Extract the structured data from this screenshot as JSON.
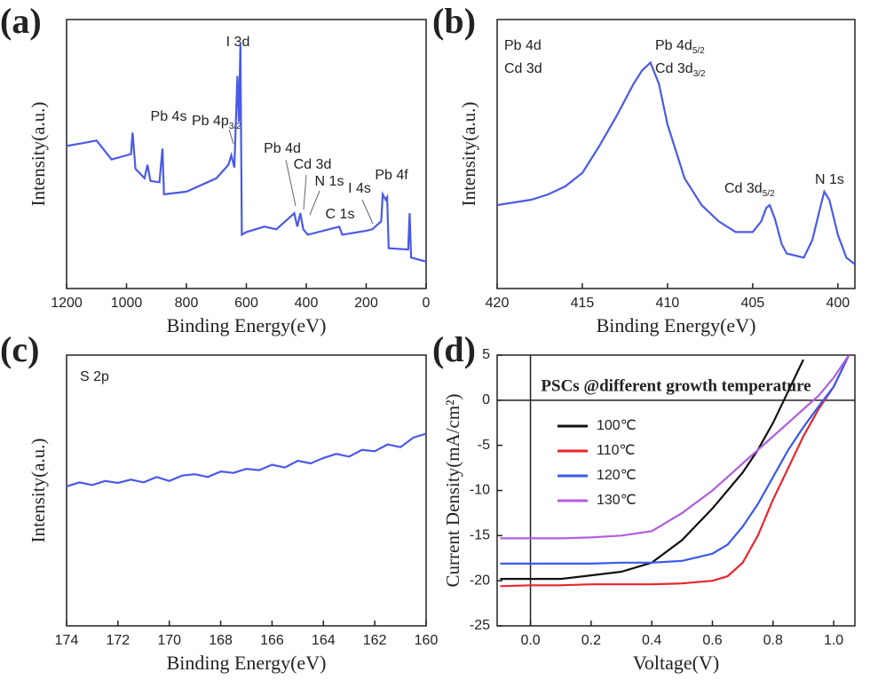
{
  "chart_data": [
    {
      "type": "line",
      "panel_label": "(a)",
      "xlabel": "Binding Energy(eV)",
      "ylabel": "Intensity(a.u.)",
      "xlim": [
        1200,
        0
      ],
      "xticks": [
        1200,
        1000,
        800,
        600,
        400,
        200,
        0
      ],
      "ylim": [
        0,
        100
      ],
      "x": [
        1200,
        1150,
        1100,
        1050,
        1000,
        985,
        980,
        970,
        940,
        930,
        920,
        890,
        880,
        875,
        800,
        700,
        660,
        650,
        640,
        630,
        625,
        620,
        615,
        600,
        540,
        500,
        440,
        430,
        420,
        410,
        395,
        290,
        280,
        200,
        180,
        150,
        145,
        135,
        130,
        125,
        60,
        55,
        50,
        0
      ],
      "series": [
        {
          "color": "#4a5ae8",
          "values": [
            53,
            54,
            55,
            48,
            49.5,
            50,
            58,
            44.5,
            41,
            46,
            40,
            39.5,
            52,
            35,
            36,
            41,
            46,
            49.5,
            45,
            79,
            62,
            91,
            20,
            21,
            23,
            22,
            28,
            23,
            28,
            22,
            20,
            23,
            20,
            21.5,
            22,
            25,
            35,
            33,
            34,
            15,
            14.5,
            28,
            11.5,
            10
          ]
        }
      ],
      "annotations": [
        {
          "text": "I 3d"
        },
        {
          "text": "Pb 4s"
        },
        {
          "text": "Pb 4p",
          "sub": "3/2"
        },
        {
          "text": "Pb 4d"
        },
        {
          "text": "Cd 3d"
        },
        {
          "text": "N 1s"
        },
        {
          "text": "C 1s"
        },
        {
          "text": "I 4s"
        },
        {
          "text": "Pb 4f"
        }
      ]
    },
    {
      "type": "line",
      "panel_label": "(b)",
      "xlabel": "Binding Energy(eV)",
      "ylabel": "Intensity(a.u.)",
      "xlim": [
        420,
        399
      ],
      "xticks": [
        420,
        415,
        410,
        405,
        400
      ],
      "ylim": [
        0,
        100
      ],
      "x": [
        420,
        419,
        418,
        417,
        416,
        415,
        414,
        413,
        412,
        411.5,
        411,
        410.5,
        410,
        409,
        408,
        407,
        406,
        405,
        404.5,
        404.2,
        404,
        403.7,
        403.3,
        403,
        402,
        401.5,
        401,
        400.8,
        400.5,
        400,
        399.5,
        399
      ],
      "series": [
        {
          "color": "#4a5ae8",
          "values": [
            31,
            32,
            33,
            35,
            38,
            43,
            53,
            64,
            76,
            81,
            84,
            76,
            61,
            41,
            31,
            25,
            21,
            21,
            25,
            30,
            31,
            26,
            16.5,
            13,
            11.5,
            18,
            31,
            36,
            33,
            20,
            11.5,
            9
          ]
        }
      ],
      "annotations": [
        {
          "text": "Pb 4d"
        },
        {
          "text": "Cd 3d"
        },
        {
          "text": "Pb 4d",
          "sub": "5/2"
        },
        {
          "text": "Cd 3d",
          "sub": "3/2"
        },
        {
          "text": "Cd 3d",
          "sub": "5/2"
        },
        {
          "text": "N 1s"
        }
      ]
    },
    {
      "type": "line",
      "panel_label": "(c)",
      "xlabel": "Binding Energy(eV)",
      "ylabel": "Intensity(a.u.)",
      "xlim": [
        174,
        160
      ],
      "xticks": [
        174,
        172,
        170,
        168,
        166,
        164,
        162,
        160
      ],
      "ylim": [
        0,
        100
      ],
      "x": [
        174,
        173.5,
        173,
        172.5,
        172,
        171.5,
        171,
        170.5,
        170,
        169.5,
        169,
        168.5,
        168,
        167.5,
        167,
        166.5,
        166,
        165.5,
        165,
        164.5,
        164,
        163.5,
        163,
        162.5,
        162,
        161.5,
        161,
        160.5,
        160
      ],
      "series": [
        {
          "color": "#4a5ae8",
          "values": [
            51.5,
            53,
            52,
            53.5,
            52.8,
            54,
            53,
            55,
            53.5,
            55.5,
            56,
            55,
            57,
            56.5,
            58,
            57.5,
            59.5,
            58.5,
            61,
            60,
            62,
            63.5,
            62.5,
            65,
            64.5,
            67,
            66,
            69.5,
            71
          ]
        }
      ],
      "annotations": [
        {
          "text": "S 2p"
        }
      ]
    },
    {
      "type": "line",
      "panel_label": "(d)",
      "xlabel": "Voltage(V)",
      "ylabel": "Current Density(mA/cm²)",
      "title": "PSCs @different growth temperature",
      "xlim": [
        -0.11,
        1.07
      ],
      "ylim": [
        -25,
        5
      ],
      "xticks": [
        {
          "value": 0,
          "label": "0.0"
        },
        {
          "value": 0.2,
          "label": "0.2"
        },
        {
          "value": 0.4,
          "label": "0.4"
        },
        {
          "value": 0.6,
          "label": "0.6"
        },
        {
          "value": 0.8,
          "label": "0.8"
        },
        {
          "value": 1,
          "label": "1.0"
        }
      ],
      "yticks": [
        5,
        0,
        -5,
        -10,
        -15,
        -20,
        -25
      ],
      "x": [
        -0.1,
        0,
        0.1,
        0.2,
        0.3,
        0.4,
        0.5,
        0.6,
        0.65,
        0.7,
        0.75,
        0.8,
        0.85,
        0.9,
        0.95,
        1.0,
        1.05
      ],
      "series": [
        {
          "name": "100℃",
          "color": "#111111",
          "values": [
            -19.8,
            -19.8,
            -19.8,
            -19.4,
            -19,
            -18,
            -15.5,
            -12,
            -10,
            -8,
            -5.5,
            -2.5,
            1,
            4.5,
            null,
            null,
            null
          ]
        },
        {
          "name": "110℃",
          "color": "#e8262b",
          "values": [
            -20.6,
            -20.5,
            -20.5,
            -20.4,
            -20.4,
            -20.4,
            -20.3,
            -20,
            -19.5,
            -18,
            -15,
            -11,
            -7.5,
            -4,
            -1,
            1.5,
            5
          ]
        },
        {
          "name": "120℃",
          "color": "#3a5ae8",
          "values": [
            -18.1,
            -18.1,
            -18.1,
            -18.1,
            -18,
            -18,
            -17.8,
            -17,
            -16,
            -14,
            -11.5,
            -8.5,
            -5.5,
            -3,
            -0.7,
            1.5,
            5
          ]
        },
        {
          "name": "130℃",
          "color": "#b05ee0",
          "values": [
            -15.3,
            -15.3,
            -15.3,
            -15.2,
            -15,
            -14.5,
            -12.5,
            -10,
            -8.5,
            -7,
            -5.5,
            -4,
            -2.5,
            -1,
            0.5,
            2.5,
            5
          ]
        }
      ]
    }
  ]
}
